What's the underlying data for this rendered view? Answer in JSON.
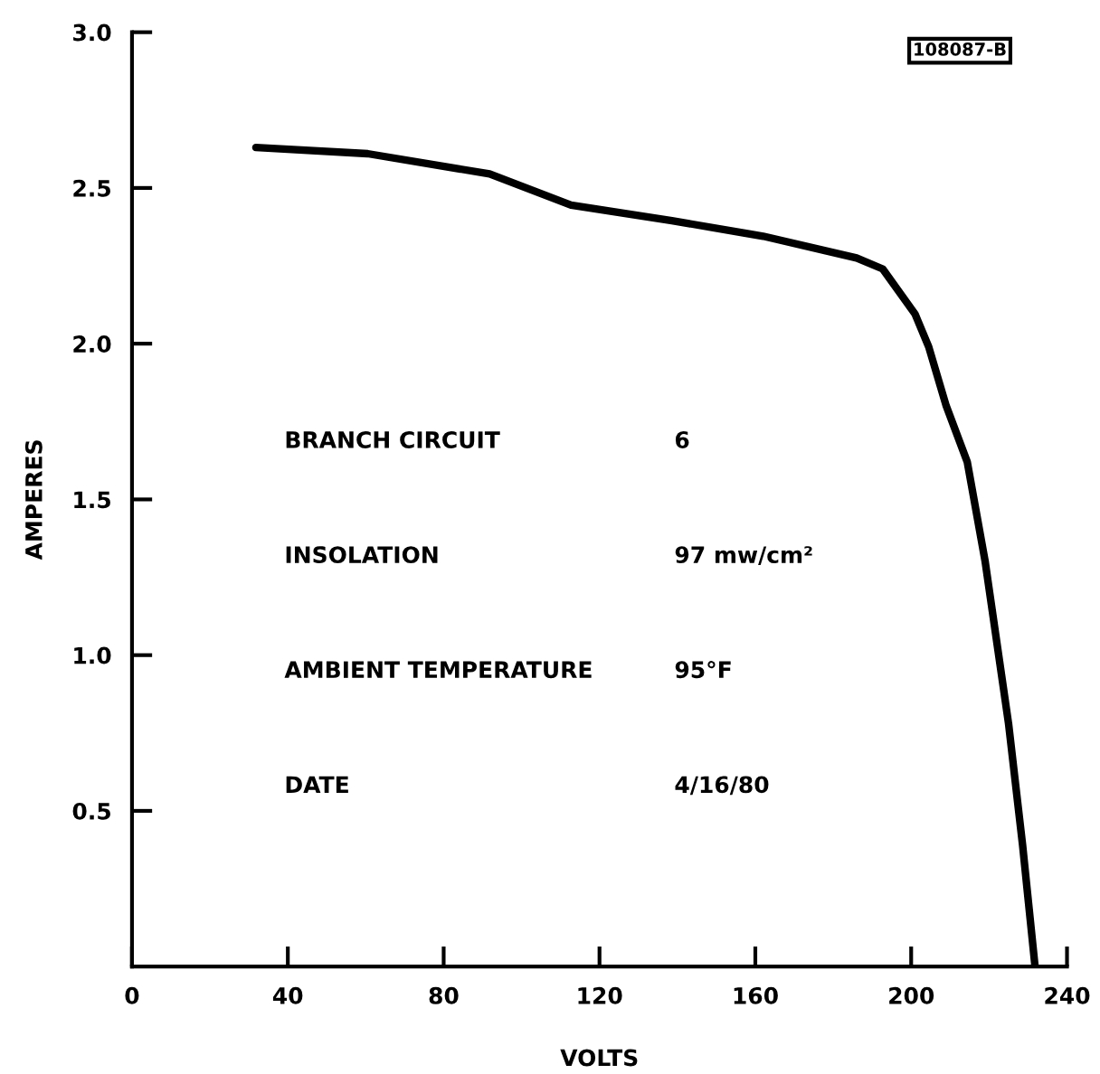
{
  "chart_data": {
    "type": "line",
    "xlabel": "VOLTS",
    "ylabel": "AMPERES",
    "x": [
      31.8,
      60.5,
      91.8,
      112.7,
      138.6,
      162,
      186,
      192.7,
      201,
      204.5,
      209,
      214.4,
      219,
      225,
      228.6,
      231.8
    ],
    "series": [
      {
        "color": "#000000",
        "values": [
          2.63,
          2.61,
          2.545,
          2.445,
          2.395,
          2.345,
          2.275,
          2.24,
          2.095,
          1.99,
          1.8,
          1.62,
          1.3,
          0.78,
          0.39,
          0.0
        ]
      }
    ],
    "xlim": [
      0,
      240
    ],
    "ylim": [
      0,
      3.0
    ],
    "xticks": [
      0,
      40,
      80,
      120,
      160,
      200,
      240
    ],
    "yticks": [
      0.5,
      {
        "value": 1,
        "label": "1.0"
      },
      1.5,
      {
        "value": 2,
        "label": "2.0"
      },
      2.5,
      {
        "value": 3,
        "label": "3.0"
      }
    ],
    "grid": false,
    "legend": false,
    "marker": "none",
    "line_style": "solid",
    "annotations": [
      "108087-B",
      "BRANCH CIRCUIT",
      "6",
      "INSOLATION",
      "97 mw/cm²",
      "AMBIENT TEMPERATURE",
      "95°F",
      "DATE",
      "4/16/80"
    ]
  }
}
